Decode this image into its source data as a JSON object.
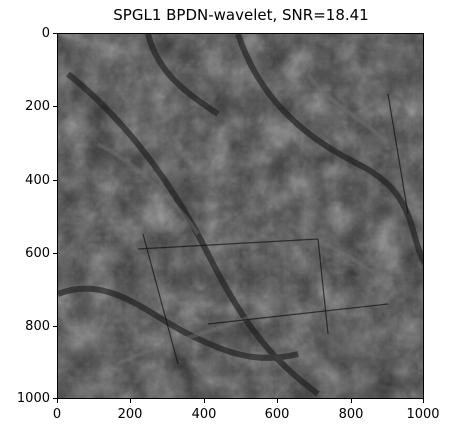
{
  "figure": {
    "title": "SPGL1 BPDN-wavelet, SNR=18.41",
    "x_ticks": [
      "0",
      "200",
      "400",
      "600",
      "800",
      "1000"
    ],
    "y_ticks": [
      "0",
      "200",
      "400",
      "600",
      "800",
      "1000"
    ],
    "image_description_colormap": "gray"
  }
}
